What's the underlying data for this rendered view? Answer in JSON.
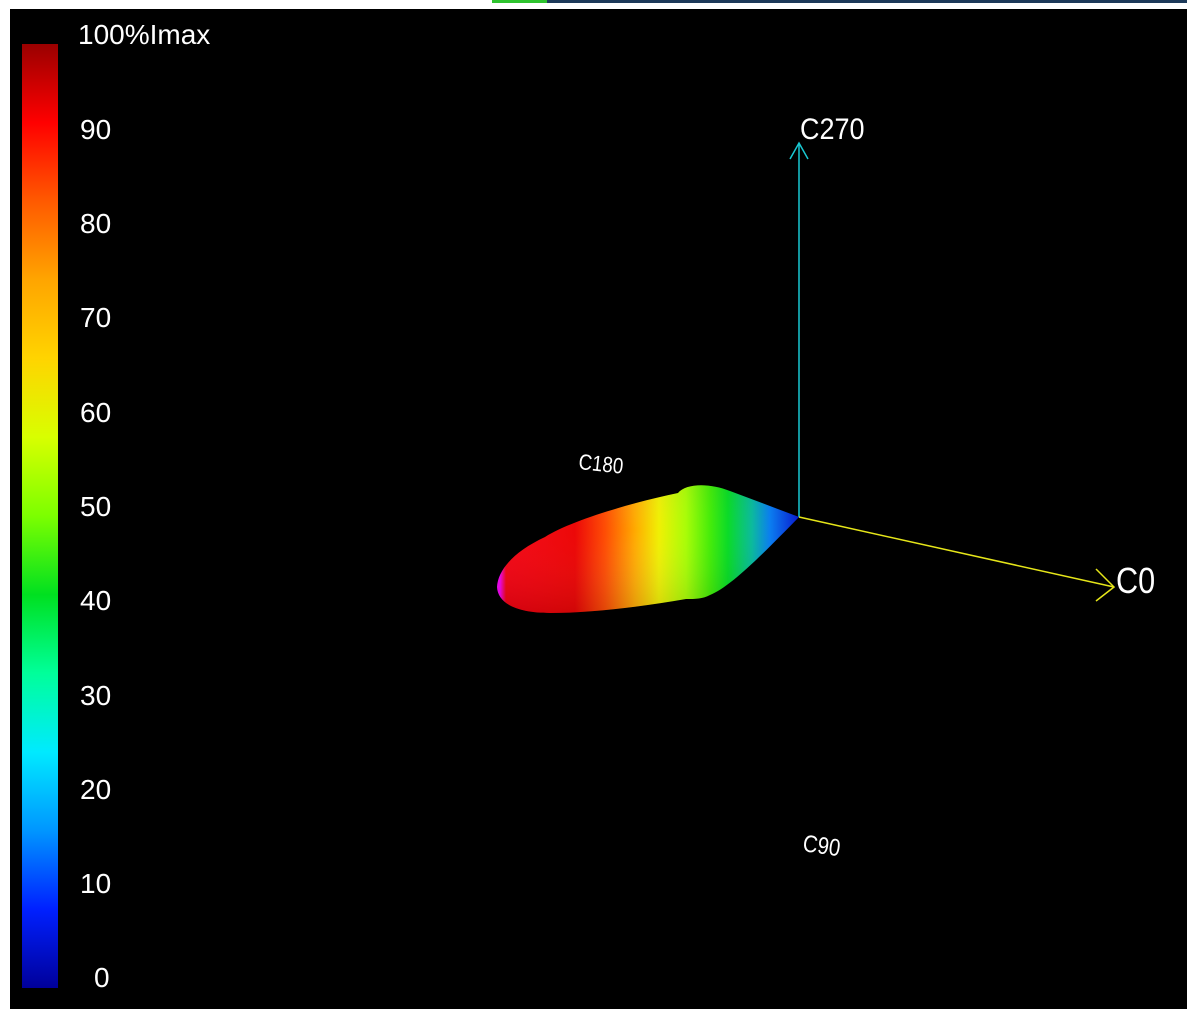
{
  "legend": {
    "title": "100%Imax",
    "ticks": [
      "90",
      "80",
      "70",
      "60",
      "50",
      "40",
      "30",
      "20",
      "10",
      "0"
    ],
    "gradient_colors": [
      "#9a0000",
      "#ff0000",
      "#ff5a00",
      "#ffa500",
      "#ffd400",
      "#d8ff00",
      "#7cff00",
      "#00e020",
      "#00ff9a",
      "#00eaff",
      "#0096ff",
      "#0020ff",
      "#00009a"
    ]
  },
  "axes": {
    "c0": "C0",
    "c90": "C90",
    "c180": "C180",
    "c270": "C270",
    "c0_color": "#e6e619",
    "c270_color": "#19c8d2"
  },
  "colors": {
    "background": "#000000",
    "accent_green": "#2ec32e",
    "accent_navy": "#1d3a5a"
  }
}
